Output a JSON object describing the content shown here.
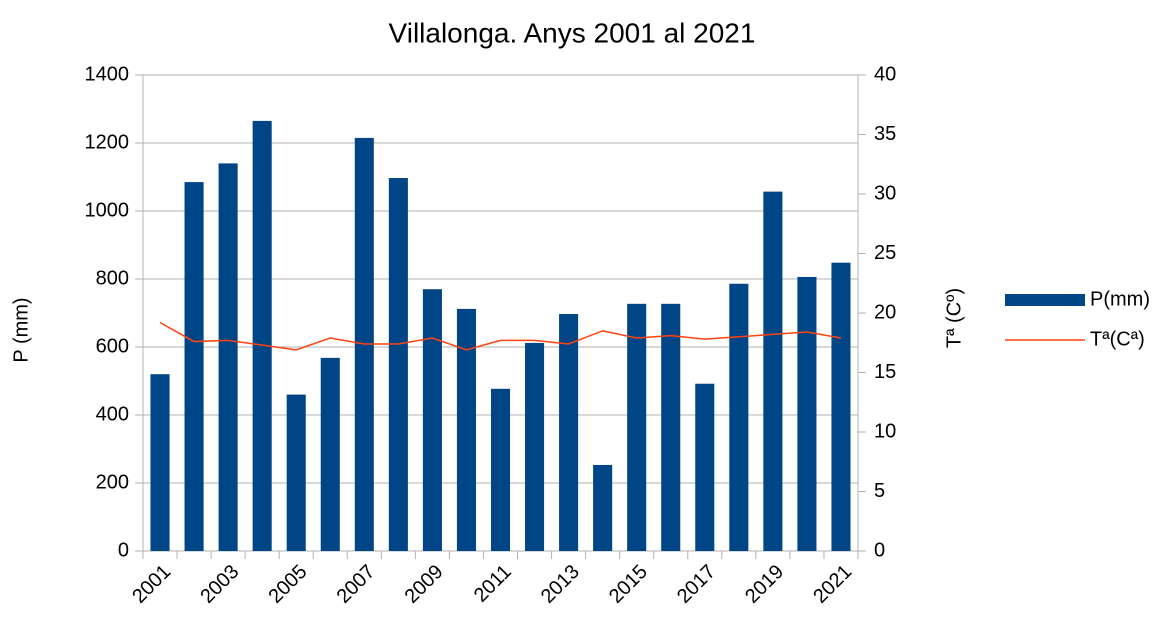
{
  "chart_data": {
    "type": "bar_line",
    "title": "Villalonga. Anys 2001 al 2021",
    "ylabel": "P (mm)",
    "y2label": "Tª (Cº)",
    "categories": [
      "2001",
      null,
      "2003",
      null,
      "2005",
      null,
      "2007",
      null,
      "2009",
      null,
      "2011",
      null,
      "2013",
      null,
      "2015",
      null,
      "2017",
      null,
      "2019",
      null,
      "2021"
    ],
    "series": [
      {
        "name": "P(mm)",
        "type": "bar",
        "color": "#004586",
        "axis": "y",
        "values": [
          520,
          1085,
          1140,
          1265,
          460,
          568,
          1215,
          1097,
          770,
          712,
          477,
          612,
          697,
          253,
          727,
          727,
          492,
          786,
          1057,
          806,
          848
        ]
      },
      {
        "name": "Tª(Cª)",
        "type": "line",
        "color": "#ff420e",
        "axis": "y2",
        "values": [
          19.2,
          17.6,
          17.7,
          17.3,
          16.9,
          17.9,
          17.4,
          17.4,
          17.9,
          16.9,
          17.7,
          17.7,
          17.4,
          18.5,
          17.9,
          18.1,
          17.8,
          18.0,
          18.2,
          18.4,
          17.9
        ]
      }
    ],
    "ylim": [
      0,
      1400
    ],
    "yticks": [
      0,
      200,
      400,
      600,
      800,
      1000,
      1200,
      1400
    ],
    "y2lim": [
      0,
      40
    ],
    "y2ticks": [
      0,
      5,
      10,
      15,
      20,
      25,
      30,
      35,
      40
    ],
    "grid": true,
    "legend": "right"
  }
}
